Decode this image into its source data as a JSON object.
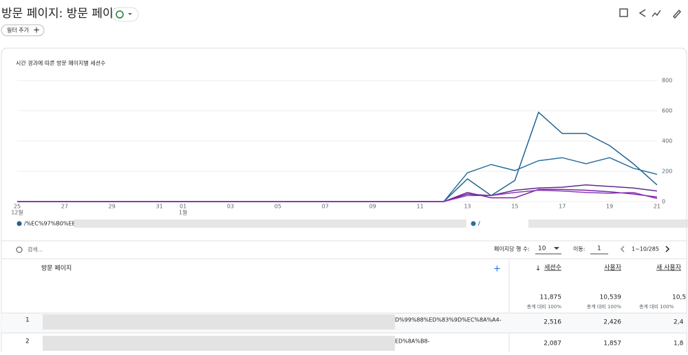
{
  "header": {
    "title": "방문 페이지: 방문 페이지",
    "filter_button": "필터 추가"
  },
  "chart_data": {
    "type": "line",
    "title": "시간 경과에 따른 방문 페이지별 세션수",
    "categories": [
      "25",
      null,
      "27",
      null,
      "29",
      null,
      "31",
      "01",
      null,
      "03",
      null,
      "05",
      null,
      "07",
      null,
      "09",
      null,
      "11",
      null,
      "13",
      null,
      "15",
      null,
      "17",
      null,
      "19",
      null,
      "21"
    ],
    "month_labels": [
      "12월",
      null,
      null,
      null,
      null,
      null,
      null,
      "1월",
      null,
      null,
      null,
      null,
      null,
      null,
      null,
      null,
      null,
      null,
      null,
      null,
      null,
      null,
      null,
      null,
      null,
      null,
      null,
      null
    ],
    "series": [
      {
        "name": "/%EC%97%B0%EB%",
        "color": "#1f6391",
        "values": [
          0,
          0,
          0,
          0,
          0,
          0,
          0,
          0,
          0,
          0,
          0,
          0,
          0,
          0,
          0,
          0,
          0,
          0,
          0,
          150,
          40,
          140,
          590,
          450,
          450,
          370,
          250,
          110
        ]
      },
      {
        "name": "/",
        "color": "#2b6f9e",
        "values": [
          0,
          0,
          0,
          0,
          0,
          0,
          0,
          0,
          0,
          0,
          0,
          0,
          0,
          0,
          0,
          0,
          0,
          0,
          0,
          190,
          245,
          205,
          270,
          290,
          250,
          290,
          220,
          180
        ]
      },
      {
        "color": "#5e2a8f",
        "values": [
          0,
          0,
          0,
          0,
          0,
          0,
          0,
          0,
          0,
          0,
          0,
          0,
          0,
          0,
          0,
          0,
          0,
          0,
          0,
          50,
          40,
          75,
          90,
          95,
          110,
          100,
          90,
          70
        ]
      },
      {
        "color": "#7b1fa2",
        "values": [
          0,
          0,
          0,
          0,
          0,
          0,
          0,
          0,
          0,
          0,
          0,
          0,
          0,
          0,
          0,
          0,
          0,
          0,
          0,
          60,
          25,
          25,
          80,
          80,
          75,
          65,
          50,
          30
        ]
      },
      {
        "color": "#8e3ab8",
        "values": [
          0,
          0,
          0,
          0,
          0,
          0,
          0,
          0,
          0,
          0,
          0,
          0,
          0,
          0,
          0,
          0,
          0,
          0,
          0,
          40,
          40,
          60,
          75,
          70,
          60,
          55,
          60,
          20
        ]
      }
    ],
    "ylim": [
      0,
      800
    ],
    "yticks": [
      0,
      200,
      400,
      600,
      800
    ],
    "grid": true
  },
  "controls": {
    "search": "검색...",
    "rows_label": "페이지당 행 수:",
    "rows_value": "10",
    "goto_label": "이동:",
    "goto_value": "1",
    "range": "1~10/285"
  },
  "table": {
    "columns": [
      "방문 페이지",
      "세션수",
      "사용자",
      "새 사용자"
    ],
    "totals": [
      "11,875",
      "10,539",
      "10,5"
    ],
    "totals_note": "총계 대비 100%",
    "rows": [
      [
        "1",
        "D%99%88%ED%83%9D%EC%8A%A4-",
        "2,516",
        "2,426",
        "2,4"
      ],
      [
        "2",
        "ED%8A%B8-",
        "2,087",
        "1,857",
        "1,8"
      ]
    ]
  }
}
